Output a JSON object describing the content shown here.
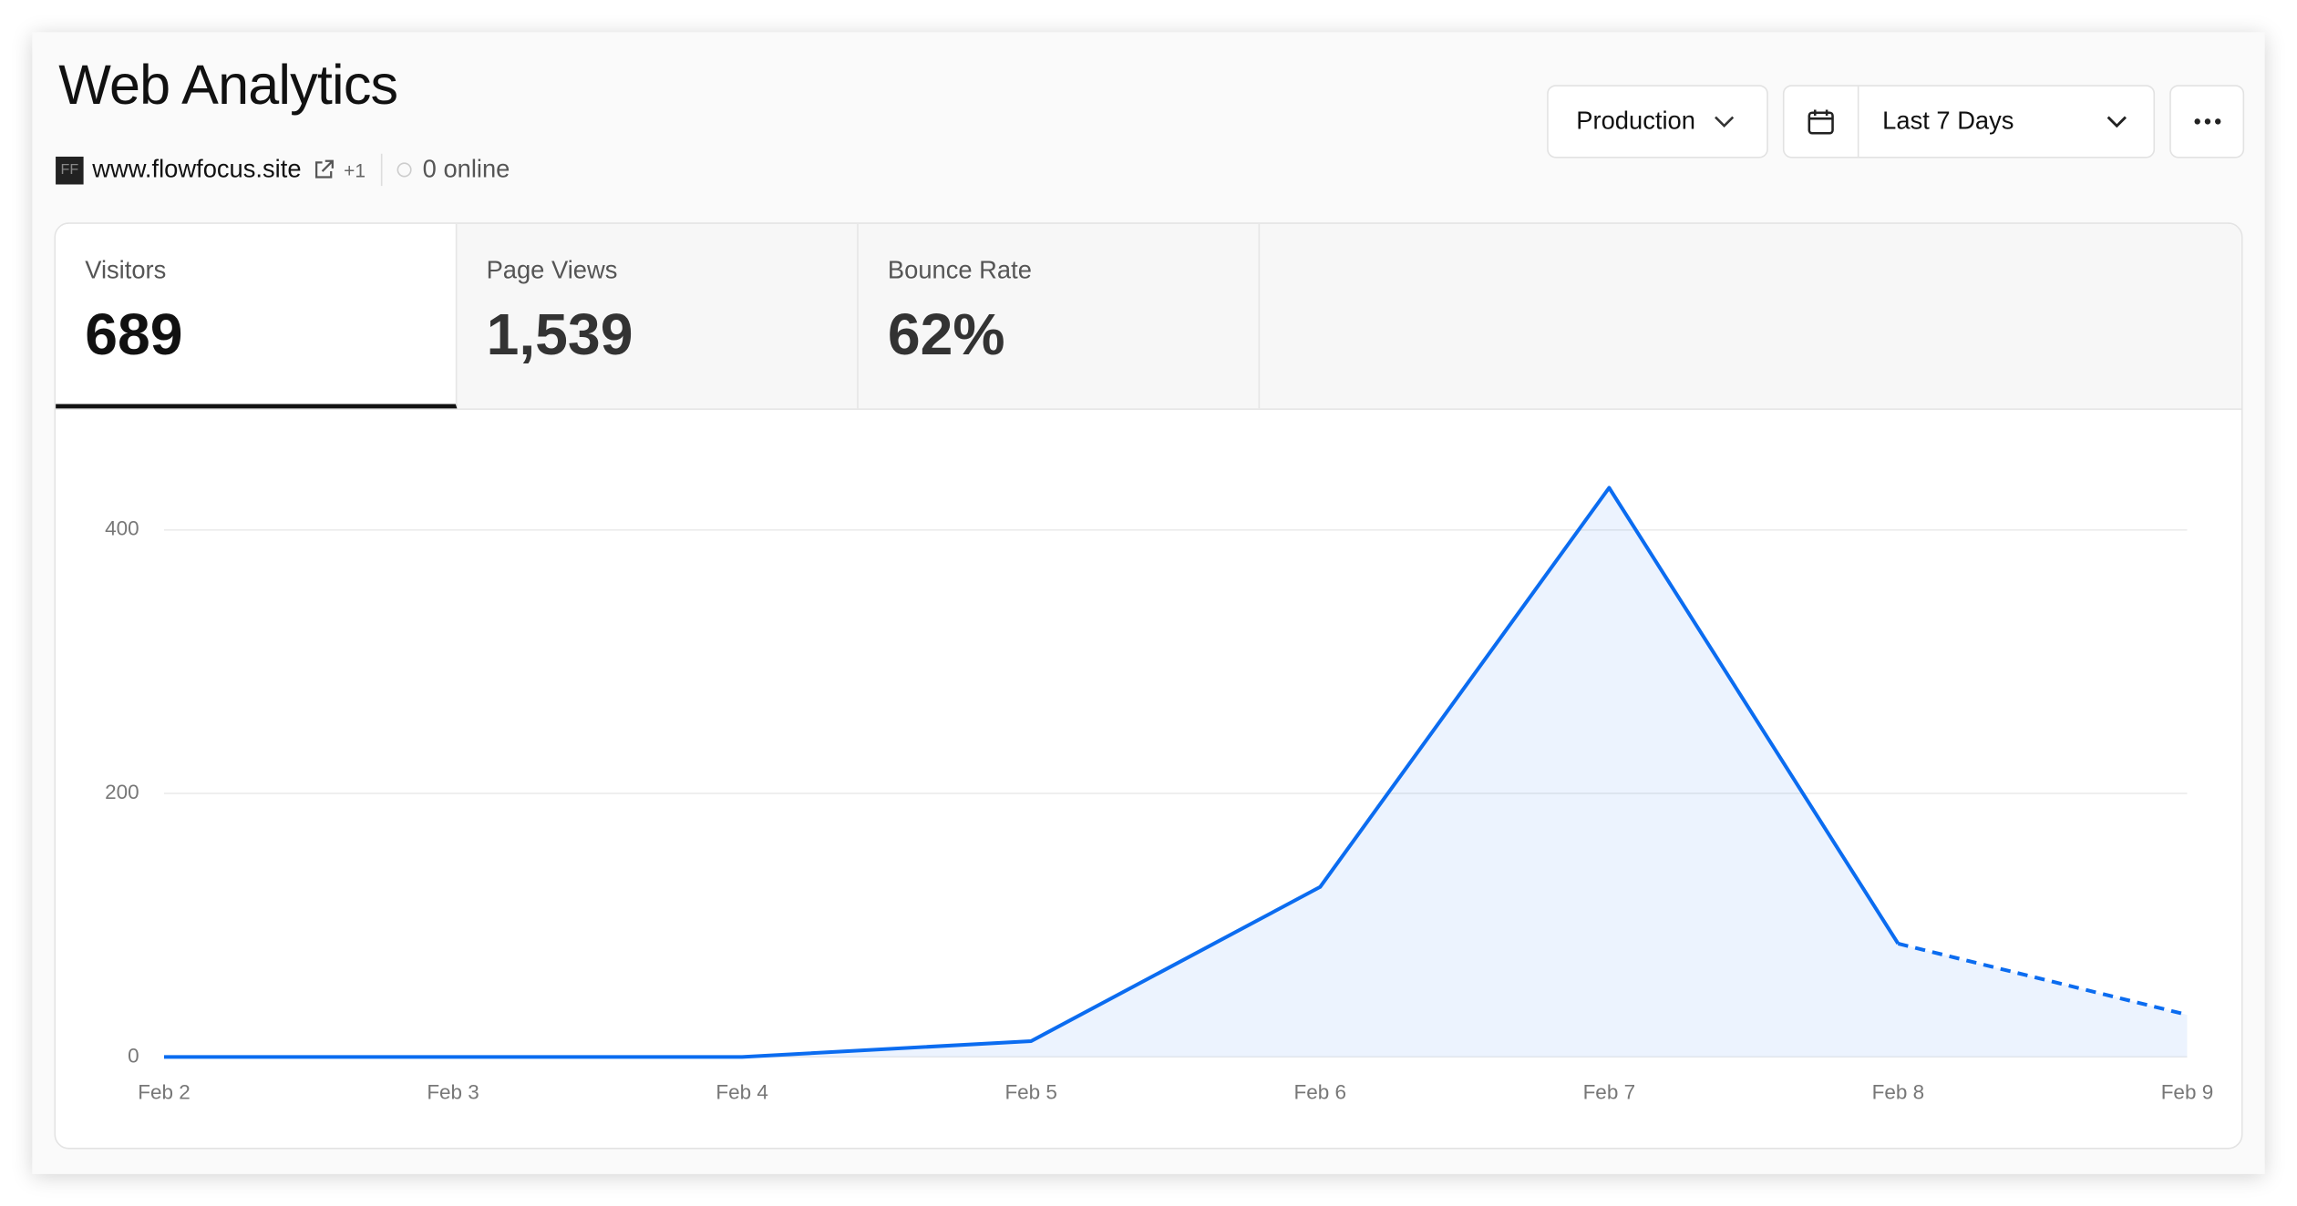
{
  "header": {
    "title": "Web Analytics",
    "logo": "FF",
    "site": "www.flowfocus.site",
    "extra_sites": "+1",
    "online": "0 online"
  },
  "controls": {
    "environment": "Production",
    "date_range": "Last 7 Days"
  },
  "tabs": [
    {
      "label": "Visitors",
      "value": "689"
    },
    {
      "label": "Page Views",
      "value": "1,539"
    },
    {
      "label": "Bounce Rate",
      "value": "62%"
    }
  ],
  "chart_data": {
    "type": "line",
    "categories": [
      "Feb 2",
      "Feb 3",
      "Feb 4",
      "Feb 5",
      "Feb 6",
      "Feb 7",
      "Feb 8",
      "Feb 9"
    ],
    "series": [
      {
        "color": "#0b6cf0",
        "values": [
          0,
          0,
          0,
          12,
          129,
          432,
          86,
          32
        ]
      }
    ],
    "ylim": [
      0,
      450
    ],
    "yticks": [
      0,
      200,
      400
    ],
    "grid": true,
    "dashed_from_index": 6
  }
}
